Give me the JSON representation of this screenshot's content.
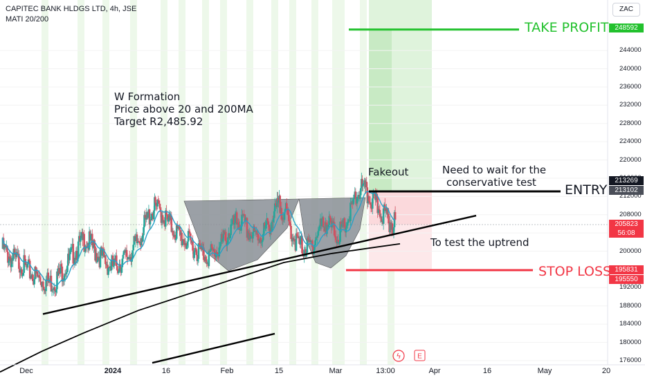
{
  "header": {
    "symbol_line": "CAPITEC BANK HLDGS LTD, 4h, JSE",
    "indicator_line": "MATI 20/200"
  },
  "currency_button": "ZAC",
  "annotations": {
    "w_formation": "W Formation",
    "price_above": "Price above 20 and 200MA",
    "target": "Target R2,485.92",
    "fakeout": "Fakeout",
    "need_wait_1": "Need to wait for the",
    "need_wait_2": "conservative test",
    "test_uptrend": "To test the uptrend",
    "take_profit": "TAKE PROFIT",
    "entry": "ENTRY",
    "stop_loss": "STOP LOSS"
  },
  "price_tags": {
    "take_profit_top": "248592",
    "entry_high": "213269",
    "entry": "213102",
    "last_price": "205823",
    "countdown": "56:08",
    "stop_loss": "195831",
    "stop_loss_low": "195550"
  },
  "colors": {
    "take_profit": "#22c12d",
    "stop_loss": "#f23645",
    "up_candle": "#26a69a",
    "down_candle": "#d05060",
    "ma20": "#26a0c8",
    "ma200": "#000000",
    "session_band": "#e8f5e3"
  },
  "chart_data": {
    "type": "candlestick",
    "title": "CAPITEC BANK HLDGS LTD, 4h, JSE",
    "ylim": [
      175000,
      254000
    ],
    "y_ticks": [
      176000,
      180000,
      184000,
      188000,
      192000,
      196000,
      200000,
      204000,
      208000,
      212000,
      216000,
      220000,
      224000,
      228000,
      232000,
      236000,
      240000,
      244000
    ],
    "y_tick_labels": [
      "176000",
      "180000",
      "184000",
      "188000",
      "192000",
      "196000",
      "200000",
      "204000",
      "208000",
      "212000",
      "216000",
      "220000",
      "224000",
      "228000",
      "232000",
      "236000",
      "240000",
      "244000"
    ],
    "x_tick_labels": [
      "Dec",
      "2024",
      "16",
      "Feb",
      "15",
      "Mar",
      "13:00",
      "Apr",
      "16",
      "May",
      "20"
    ],
    "close_path": [
      200500,
      199000,
      198000,
      197500,
      196000,
      195000,
      194000,
      193500,
      193000,
      193500,
      195500,
      197000,
      199500,
      201000,
      202500,
      201500,
      199500,
      198500,
      197000,
      196500,
      197500,
      198500,
      200000,
      202000,
      205000,
      208000,
      209500,
      208500,
      206500,
      205000,
      203500,
      202500,
      201500,
      200500,
      199500,
      199000,
      199500,
      201000,
      203000,
      205000,
      206500,
      206000,
      204000,
      203000,
      203500,
      205000,
      207000,
      210000,
      209000,
      205000,
      202000,
      201000,
      200500,
      202000,
      205000,
      206500,
      205000,
      203500,
      204500,
      207500,
      211000,
      214000,
      212500,
      211000,
      209500,
      208000,
      206500,
      205823
    ],
    "ma200_path": [
      [
        0,
        173500
      ],
      [
        60,
        178000
      ],
      [
        120,
        182000
      ],
      [
        200,
        187000
      ],
      [
        270,
        190500
      ],
      [
        340,
        194000
      ],
      [
        410,
        197500
      ],
      [
        480,
        199500
      ],
      [
        540,
        200800
      ],
      [
        578,
        201600
      ]
    ],
    "trendlines": [
      {
        "from": [
          62,
          186200
        ],
        "to": [
          688,
          207800
        ]
      },
      {
        "from": [
          220,
          175500
        ],
        "to": [
          397,
          181900
        ]
      }
    ],
    "levels": {
      "take_profit": 248592,
      "entry": 213102,
      "stop_loss": 195831,
      "last": 205823
    }
  }
}
